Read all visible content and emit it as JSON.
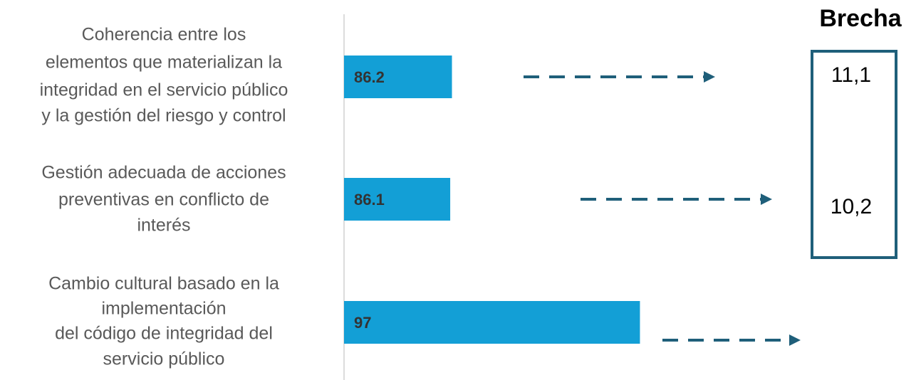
{
  "chart_data": {
    "type": "barh",
    "categories": [
      [
        "Coherencia entre los",
        "elementos que materializan la",
        "integridad en el servicio público",
        "y la gestión del riesgo y control"
      ],
      [
        "Gestión adecuada de acciones",
        "preventivas en conflicto de",
        "interés"
      ],
      [
        "Cambio cultural basado en la",
        "implementación",
        "del código de integridad del",
        "servicio público"
      ]
    ],
    "values": [
      86.2,
      86.1,
      97
    ],
    "color": "#139fd6",
    "xlim": [
      80,
      112
    ],
    "gap_title": "Brecha",
    "gap_labels": [
      "11,1",
      "10,2"
    ]
  }
}
